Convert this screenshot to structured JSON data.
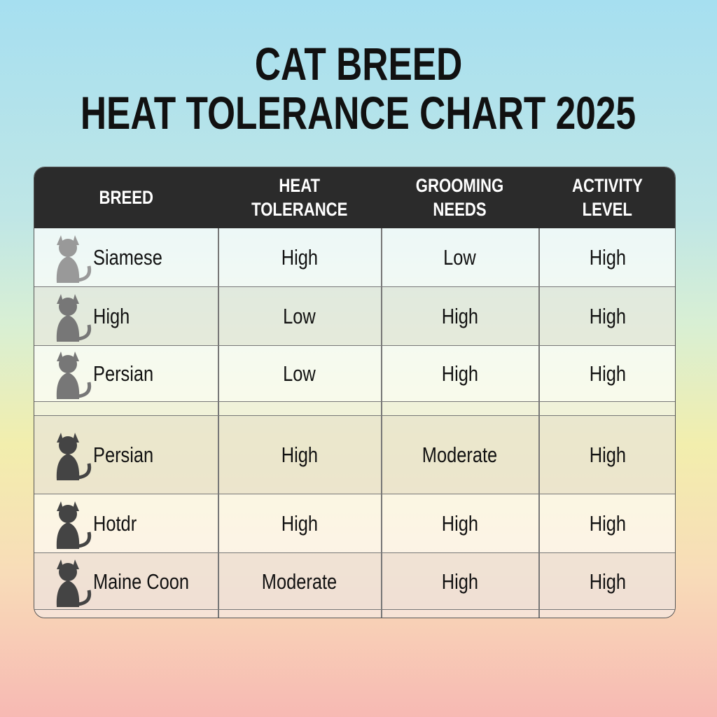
{
  "title_lines": [
    "CAT BREED",
    "HEAT TOLERANCE CHART 2025"
  ],
  "table": {
    "header": [
      "BREED",
      "HEAT TOLERANCE",
      "GROOMING NEEDS",
      "ACTIVITY LEVEL"
    ],
    "rows": [
      [
        "Siamese",
        "High",
        "Low",
        "High"
      ],
      [
        "High",
        "Low",
        "High",
        "High"
      ],
      [
        "Persian",
        "Low",
        "High",
        "High"
      ],
      [
        "Persian",
        "High",
        "Moderate",
        "High"
      ],
      [
        "Hotdr",
        "High",
        "High",
        "High"
      ],
      [
        "Maine Coon",
        "Moderate",
        "High",
        "High"
      ]
    ]
  }
}
